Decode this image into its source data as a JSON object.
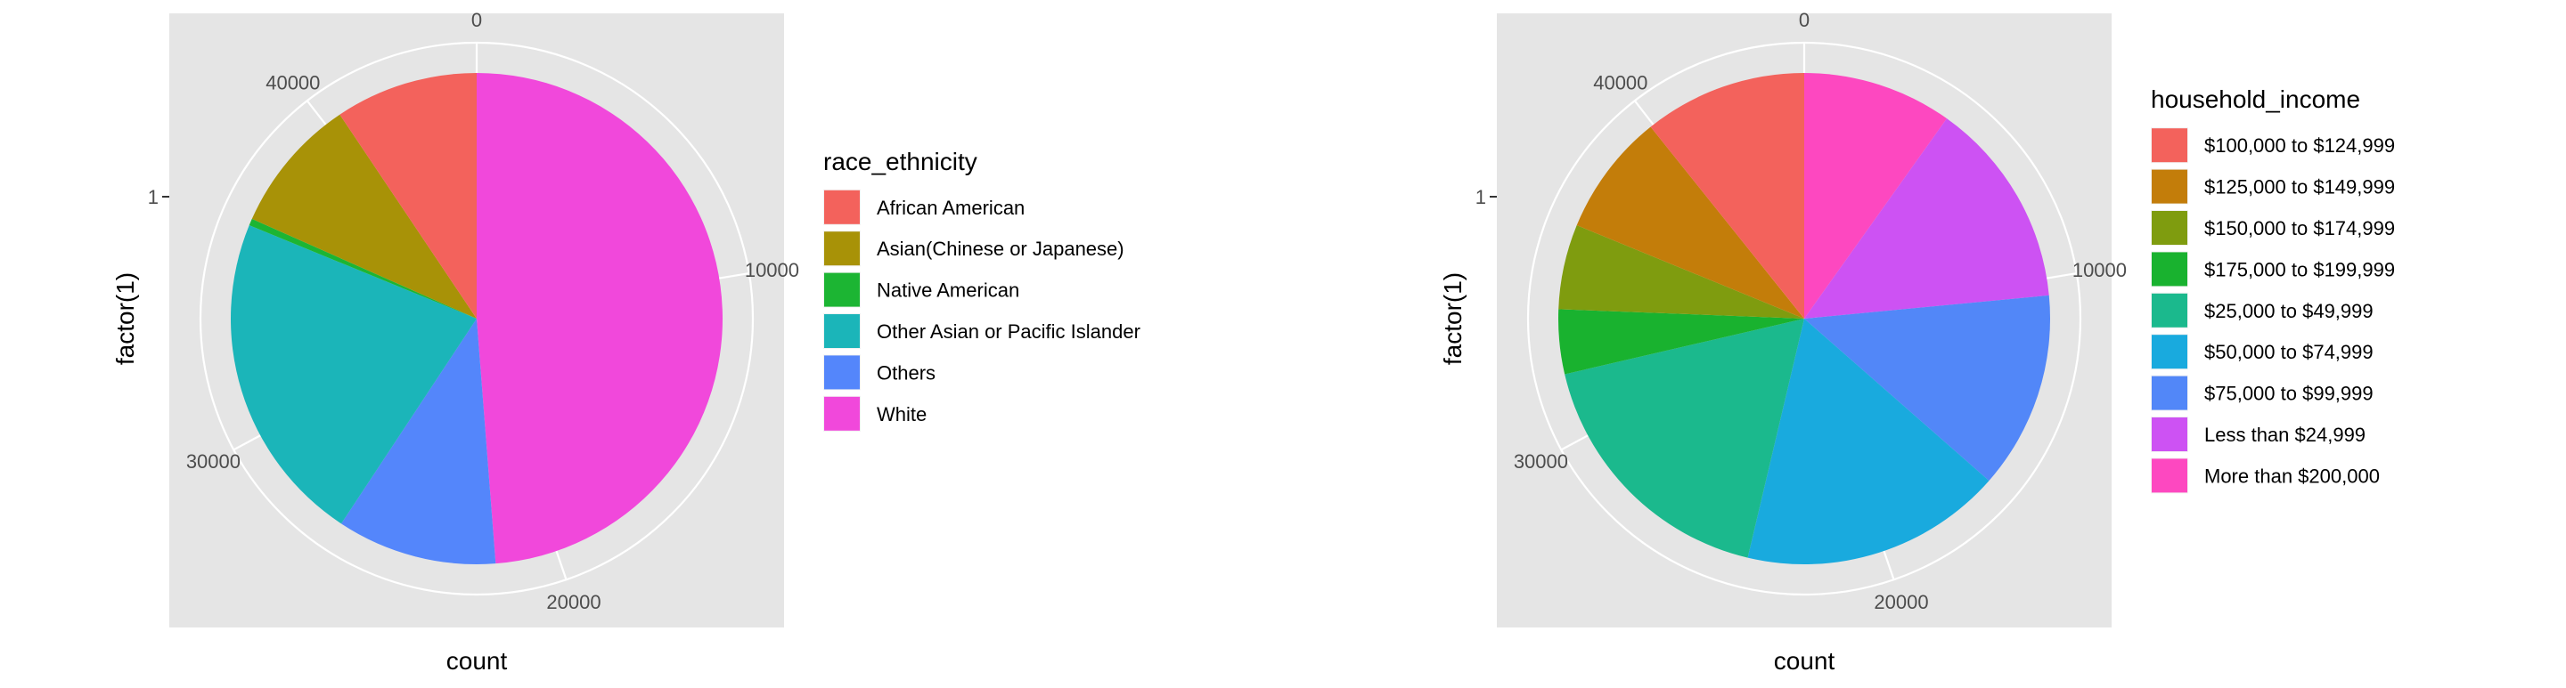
{
  "chart_data": [
    {
      "type": "pie",
      "coord": "polar",
      "xlabel": "count",
      "ylabel": "factor(1)",
      "y_tick_labels": [
        "1"
      ],
      "radial_ticks": [
        0,
        10000,
        20000,
        30000,
        40000
      ],
      "radial_tick_labels": [
        "0",
        "10000",
        "20000",
        "30000",
        "40000"
      ],
      "total": 44700,
      "direction": "clockwise",
      "start": "top",
      "legend_title": "race_ethnicity",
      "legend_position": "right",
      "grid": true,
      "slices": [
        {
          "label": "White",
          "value": 21800,
          "color": "#F148DB"
        },
        {
          "label": "Others",
          "value": 4700,
          "color": "#5486FB"
        },
        {
          "label": "Other Asian or Pacific Islander",
          "value": 9800,
          "color": "#1BB5B9"
        },
        {
          "label": "Native American",
          "value": 200,
          "color": "#1CB533"
        },
        {
          "label": "Asian(Chinese or Japanese)",
          "value": 4000,
          "color": "#A89207"
        },
        {
          "label": "African American",
          "value": 4200,
          "color": "#F3625C"
        }
      ],
      "legend_items": [
        {
          "label": "African American",
          "color": "#F3625C"
        },
        {
          "label": "Asian(Chinese or Japanese)",
          "color": "#A89207"
        },
        {
          "label": "Native American",
          "color": "#1CB533"
        },
        {
          "label": "Other Asian or Pacific Islander",
          "color": "#1BB5B9"
        },
        {
          "label": "Others",
          "color": "#5486FB"
        },
        {
          "label": "White",
          "color": "#F148DB"
        }
      ]
    },
    {
      "type": "pie",
      "coord": "polar",
      "xlabel": "count",
      "ylabel": "factor(1)",
      "y_tick_labels": [
        "1"
      ],
      "radial_ticks": [
        0,
        10000,
        20000,
        30000,
        40000
      ],
      "radial_tick_labels": [
        "0",
        "10000",
        "20000",
        "30000",
        "40000"
      ],
      "total": 44700,
      "direction": "clockwise",
      "start": "top",
      "legend_title": "household_income",
      "legend_position": "right",
      "grid": true,
      "slices": [
        {
          "label": "More than $200,000",
          "value": 4400,
          "color": "#FD48C0"
        },
        {
          "label": "Less than $24,999",
          "value": 6100,
          "color": "#CD52F3"
        },
        {
          "label": "$75,000 to $99,999",
          "value": 5800,
          "color": "#5287F8"
        },
        {
          "label": "$50,000 to $74,999",
          "value": 7700,
          "color": "#19AADE"
        },
        {
          "label": "$25,000 to $49,999",
          "value": 7900,
          "color": "#1BB98D"
        },
        {
          "label": "$175,000 to $199,999",
          "value": 1900,
          "color": "#19B22F"
        },
        {
          "label": "$150,000 to $174,999",
          "value": 2500,
          "color": "#7F9C0F"
        },
        {
          "label": "$125,000 to $149,999",
          "value": 3600,
          "color": "#C37D0A"
        },
        {
          "label": "$100,000 to $124,999",
          "value": 4800,
          "color": "#F3625C"
        }
      ],
      "legend_items": [
        {
          "label": "$100,000 to $124,999",
          "color": "#F3625C"
        },
        {
          "label": "$125,000 to $149,999",
          "color": "#C37D0A"
        },
        {
          "label": "$150,000 to $174,999",
          "color": "#7F9C0F"
        },
        {
          "label": "$175,000 to $199,999",
          "color": "#19B22F"
        },
        {
          "label": "$25,000 to $49,999",
          "color": "#1BB98D"
        },
        {
          "label": "$50,000 to $74,999",
          "color": "#19AADE"
        },
        {
          "label": "$75,000 to $99,999",
          "color": "#5287F8"
        },
        {
          "label": "Less than $24,999",
          "color": "#CD52F3"
        },
        {
          "label": "More than $200,000",
          "color": "#FD48C0"
        }
      ]
    }
  ]
}
